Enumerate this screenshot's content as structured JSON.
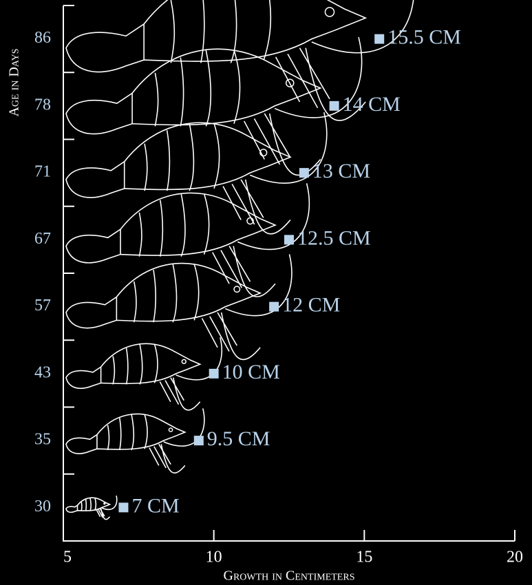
{
  "chart_data": {
    "type": "scatter",
    "x_label": "Growth in Centimeters",
    "y_label": "Age in Days",
    "categories": [
      30,
      35,
      43,
      57,
      67,
      71,
      78,
      86
    ],
    "values": [
      7,
      9.5,
      10,
      12,
      12.5,
      13,
      14,
      15.5
    ],
    "value_labels": [
      "7 CM",
      "9.5 CM",
      "10 CM",
      "12 CM",
      "12.5 CM",
      "13 CM",
      "14 CM",
      "15.5 CM"
    ],
    "color": "#b9d3ea",
    "xlim": [
      5,
      20
    ],
    "xticks": [
      5,
      10,
      15,
      20
    ]
  }
}
